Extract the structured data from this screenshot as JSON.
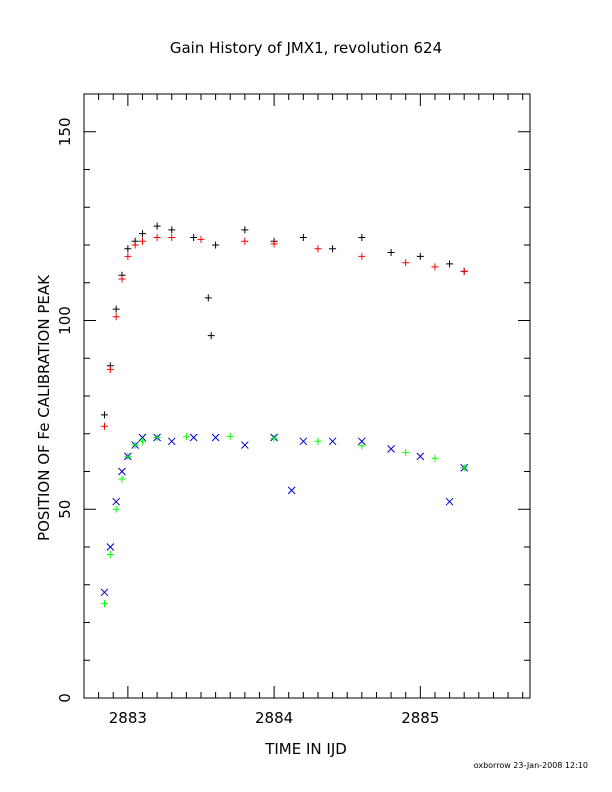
{
  "chart_data": {
    "type": "scatter",
    "title": "Gain History of JMX1, revolution 624",
    "xlabel": "TIME IN IJD",
    "ylabel": "POSITION OF Fe CALIBRATION PEAK",
    "footer": "oxborrow 23-Jan-2008 12:10",
    "xlim": [
      2882.7,
      2885.75
    ],
    "ylim": [
      0,
      160
    ],
    "x_ticks": [
      2883,
      2884,
      2885
    ],
    "y_ticks": [
      0,
      50,
      100,
      150
    ],
    "grid": false,
    "legend": "none",
    "series": [
      {
        "marker": "+",
        "color": "#000000",
        "x": [
          2882.84,
          2882.88,
          2882.92,
          2882.96,
          2883.0,
          2883.05,
          2883.1,
          2883.2,
          2883.3,
          2883.45,
          2883.55,
          2883.57,
          2883.6,
          2883.8,
          2884.0,
          2884.2,
          2884.4,
          2884.6,
          2884.8,
          2885.0,
          2885.2,
          2885.3
        ],
        "y": [
          75,
          88,
          103,
          112,
          119,
          121,
          123,
          125,
          124,
          122,
          106,
          96,
          120,
          124,
          121,
          122,
          119,
          122,
          118,
          117,
          115,
          113
        ]
      },
      {
        "marker": "x",
        "color": "#0000cc",
        "x": [
          2882.84,
          2882.88,
          2882.92,
          2882.96,
          2883.0,
          2883.05,
          2883.1,
          2883.2,
          2883.3,
          2883.45,
          2883.6,
          2883.8,
          2884.0,
          2884.12,
          2884.2,
          2884.4,
          2884.6,
          2884.8,
          2885.0,
          2885.2,
          2885.3
        ],
        "y": [
          28,
          40,
          52,
          60,
          64,
          67,
          69,
          69,
          68,
          69,
          69,
          67,
          69,
          55,
          68,
          68,
          68,
          66,
          64,
          52,
          61
        ]
      },
      {
        "marker": "+",
        "color": "#ff0000",
        "x": [
          2882.84,
          2882.88,
          2882.92,
          2882.96,
          2883.0,
          2883.05,
          2883.1,
          2883.2,
          2883.3,
          2883.5,
          2883.8,
          2884.0,
          2884.3,
          2884.6,
          2884.9,
          2885.1,
          2885.3
        ],
        "y": [
          72,
          87,
          101,
          111,
          117,
          120,
          121,
          122,
          122,
          121.5,
          121,
          120.3,
          119,
          117,
          115.3,
          114.2,
          113
        ]
      },
      {
        "marker": "+",
        "color": "#00ff00",
        "x": [
          2882.84,
          2882.88,
          2882.92,
          2882.96,
          2883.0,
          2883.05,
          2883.1,
          2883.2,
          2883.4,
          2883.7,
          2884.0,
          2884.3,
          2884.6,
          2884.9,
          2885.1,
          2885.3
        ],
        "y": [
          25,
          38,
          50,
          58,
          64,
          67,
          68,
          69,
          69.2,
          69.3,
          68.8,
          68,
          66.8,
          65,
          63.5,
          61
        ]
      }
    ]
  }
}
